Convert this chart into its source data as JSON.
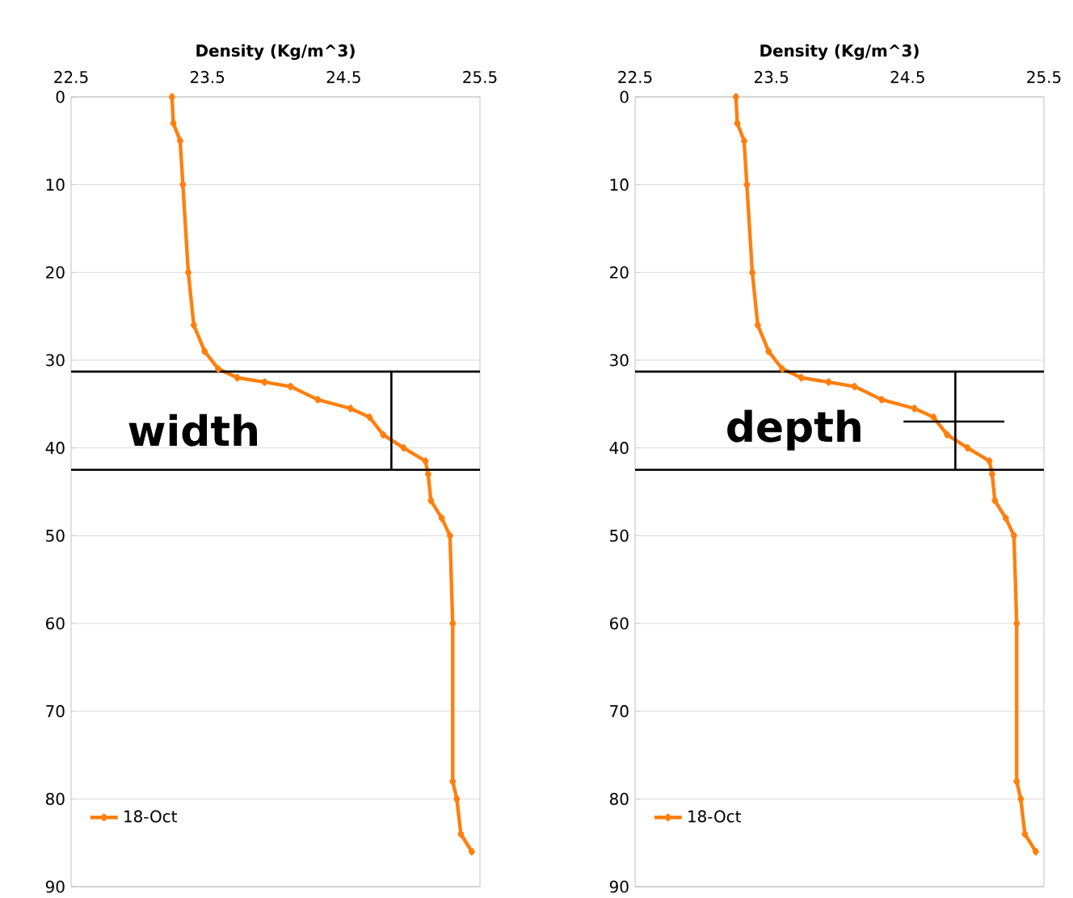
{
  "chart_data": [
    {
      "type": "line",
      "xlabel": "Density (Kg/m^3)",
      "xlim": [
        22.5,
        25.5
      ],
      "xticks": [
        22.5,
        23.5,
        24.5,
        25.5
      ],
      "ylim": [
        90,
        0
      ],
      "yticks": [
        0,
        10,
        20,
        30,
        40,
        50,
        60,
        70,
        80,
        90
      ],
      "grid": "y",
      "legend": "bottom left",
      "marker": "diamond",
      "series": [
        {
          "name": "18-Oct",
          "color": "#ff7f0e",
          "x": [
            23.24,
            23.25,
            23.3,
            23.32,
            23.36,
            23.4,
            23.48,
            23.58,
            23.72,
            23.92,
            24.11,
            24.31,
            24.55,
            24.69,
            24.79,
            24.94,
            25.1,
            25.12,
            25.14,
            25.22,
            25.28,
            25.3,
            25.3,
            25.33,
            25.36,
            25.44
          ],
          "values": [
            0,
            3,
            5,
            10,
            20,
            26,
            29,
            31,
            32,
            32.5,
            33,
            34.5,
            35.5,
            36.5,
            38.5,
            40,
            41.5,
            43,
            46,
            48,
            50,
            60,
            78,
            80,
            84,
            86
          ]
        },
        {
          "type": "line",
          "marker": "none",
          "color": "#000000",
          "x": [
            24.85,
            24.85
          ],
          "values": [
            31.3,
            42.5
          ]
        }
      ],
      "ref_lines": [
        {
          "axis": "y",
          "value": 31.3,
          "color": "#000000"
        },
        {
          "axis": "y",
          "value": 42.5,
          "color": "#000000"
        }
      ],
      "annotations": [
        "width"
      ]
    },
    {
      "type": "line",
      "xlabel": "Density (Kg/m^3)",
      "xlim": [
        22.5,
        25.5
      ],
      "xticks": [
        22.5,
        23.5,
        24.5,
        25.5
      ],
      "ylim": [
        90,
        0
      ],
      "yticks": [
        0,
        10,
        20,
        30,
        40,
        50,
        60,
        70,
        80,
        90
      ],
      "grid": "y",
      "legend": "bottom left",
      "marker": "diamond",
      "series": [
        {
          "name": "18-Oct",
          "color": "#ff7f0e",
          "x": [
            23.24,
            23.25,
            23.3,
            23.32,
            23.36,
            23.4,
            23.48,
            23.58,
            23.72,
            23.92,
            24.11,
            24.31,
            24.55,
            24.69,
            24.79,
            24.94,
            25.1,
            25.12,
            25.14,
            25.22,
            25.28,
            25.3,
            25.3,
            25.33,
            25.36,
            25.44
          ],
          "values": [
            0,
            3,
            5,
            10,
            20,
            26,
            29,
            31,
            32,
            32.5,
            33,
            34.5,
            35.5,
            36.5,
            38.5,
            40,
            41.5,
            43,
            46,
            48,
            50,
            60,
            78,
            80,
            84,
            86
          ]
        },
        {
          "type": "line",
          "marker": "none",
          "color": "#000000",
          "x": [
            24.85,
            24.85
          ],
          "values": [
            31.3,
            42.5
          ]
        },
        {
          "type": "line",
          "marker": "none",
          "color": "#000000",
          "x": [
            24.47,
            25.21
          ],
          "values": [
            37,
            37
          ]
        }
      ],
      "ref_lines": [
        {
          "axis": "y",
          "value": 31.3,
          "color": "#000000"
        },
        {
          "axis": "y",
          "value": 42.5,
          "color": "#000000"
        }
      ],
      "annotations": [
        "depth"
      ]
    }
  ]
}
